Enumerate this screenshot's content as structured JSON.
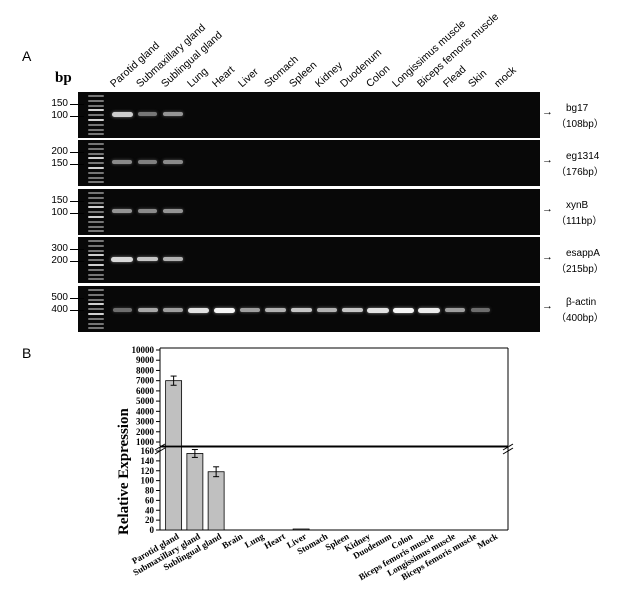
{
  "panel_a": {
    "letter": "A",
    "bp_label": "bp",
    "lanes": [
      "Parotid gland",
      "Submaxillary gland",
      "Sublingual gland",
      "Lung",
      "Heart",
      "Liver",
      "Stomach",
      "Spleen",
      "Kidney",
      "Duodenum",
      "Colon",
      "Longissimus muscle",
      "Biceps femoris muscle",
      "Flead",
      "Skin",
      "mock"
    ],
    "gels": [
      {
        "gene": "bg17",
        "size": "（108bp）",
        "ticks": [
          "150",
          "100"
        ],
        "bands": [
          0.75,
          0.3,
          0.45,
          0,
          0,
          0,
          0,
          0,
          0,
          0,
          0,
          0,
          0,
          0,
          0,
          0
        ]
      },
      {
        "gene": "eg1314",
        "size": "（176bp）",
        "ticks": [
          "200",
          "150"
        ],
        "bands": [
          0.4,
          0.35,
          0.4,
          0,
          0,
          0,
          0,
          0,
          0,
          0,
          0,
          0,
          0,
          0,
          0,
          0
        ]
      },
      {
        "gene": "xynB",
        "size": "（111bp）",
        "ticks": [
          "150",
          "100"
        ],
        "bands": [
          0.45,
          0.4,
          0.45,
          0,
          0,
          0,
          0,
          0,
          0,
          0,
          0,
          0,
          0,
          0,
          0,
          0
        ]
      },
      {
        "gene": "esappA",
        "size": "（215bp）",
        "ticks": [
          "300",
          "200"
        ],
        "bands": [
          0.8,
          0.7,
          0.6,
          0,
          0,
          0,
          0,
          0,
          0,
          0,
          0,
          0,
          0,
          0,
          0,
          0
        ]
      },
      {
        "gene": "β-actin",
        "size": "（400bp）",
        "ticks": [
          "500",
          "400"
        ],
        "bands": [
          0.25,
          0.55,
          0.5,
          0.85,
          0.95,
          0.5,
          0.6,
          0.7,
          0.6,
          0.7,
          0.85,
          0.95,
          0.9,
          0.5,
          0.25,
          0
        ]
      }
    ]
  },
  "panel_b": {
    "letter": "B",
    "chart_data": {
      "type": "bar",
      "ylabel": "Relative Expression",
      "categories": [
        "Parotid gland",
        "Submaxillary gland",
        "Sublingual gland",
        "Brain",
        "Lung",
        "Heart",
        "Liver",
        "Stomach",
        "Spleen",
        "Kidney",
        "Duodenum",
        "Colon",
        "Biceps femoris muscle",
        "Longissimus muscle",
        "Biceps femoris muscle",
        "Mock"
      ],
      "values": [
        7000,
        155,
        118,
        0,
        0,
        0,
        1,
        0,
        0,
        0,
        0,
        0,
        0,
        0,
        0,
        0
      ],
      "errors": [
        450,
        8,
        10,
        0,
        0,
        0,
        0,
        0,
        0,
        0,
        0,
        0,
        0,
        0,
        0,
        0
      ],
      "y_upper_ticks": [
        "10000",
        "9000",
        "8000",
        "7000",
        "6000",
        "5000",
        "4000",
        "3000",
        "2000",
        "1000"
      ],
      "y_lower_ticks": [
        "160",
        "140",
        "120",
        "100",
        "80",
        "60",
        "40",
        "20",
        "0"
      ],
      "axis_break": true,
      "bar_color": "#c0c0c0"
    }
  }
}
